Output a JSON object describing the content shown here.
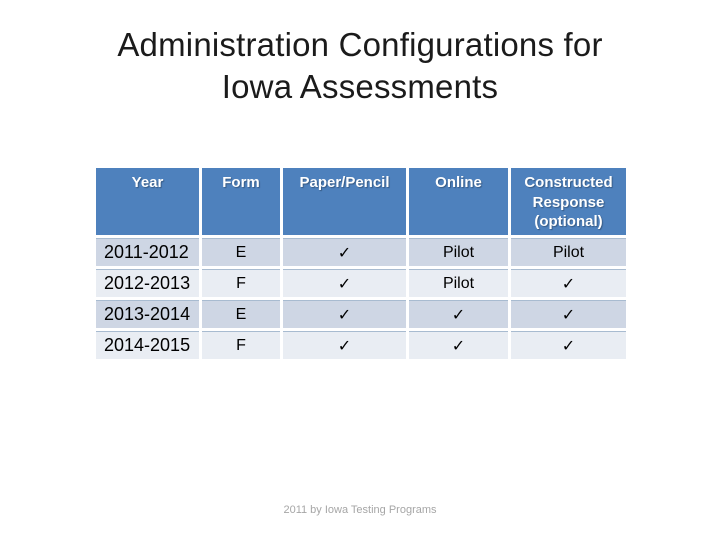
{
  "slide": {
    "title_line1": "Administration Configurations for",
    "title_line2": "Iowa Assessments",
    "footer": "2011 by Iowa Testing Programs"
  },
  "table": {
    "headers": [
      "Year",
      "Form",
      "Paper/Pencil",
      "Online",
      "Constructed Response (optional)"
    ],
    "rows": [
      {
        "year": "2011-2012",
        "form": "E",
        "paper_pencil": "✓",
        "online": "Pilot",
        "constructed_response": "Pilot"
      },
      {
        "year": "2012-2013",
        "form": "F",
        "paper_pencil": "✓",
        "online": "Pilot",
        "constructed_response": "✓"
      },
      {
        "year": "2013-2014",
        "form": "E",
        "paper_pencil": "✓",
        "online": "✓",
        "constructed_response": "✓"
      },
      {
        "year": "2014-2015",
        "form": "F",
        "paper_pencil": "✓",
        "online": "✓",
        "constructed_response": "✓"
      }
    ],
    "check_glyph": "✓"
  },
  "colors": {
    "header_bg": "#4E81BD",
    "band_dark": "#CED6E4",
    "band_light": "#E9EDF3",
    "header_text": "#FFFFFF",
    "title_text": "#1B1B1B",
    "footer_text": "#A6A6A6",
    "body_text": "#000000"
  }
}
